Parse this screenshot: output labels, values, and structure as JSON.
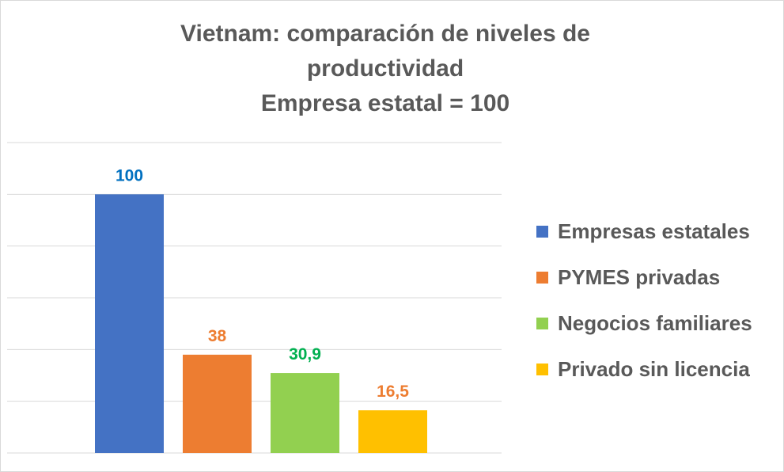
{
  "chart_data": {
    "type": "bar",
    "title": "Vietnam: comparación de niveles de\nproductividad\nEmpresa estatal = 100",
    "categories": [
      "Empresas estatales",
      "PYMES privadas",
      "Negocios familiares",
      "Privado sin licencia"
    ],
    "values": [
      100,
      38,
      30.9,
      16.5
    ],
    "data_labels": [
      "100",
      "38",
      "30,9",
      "16,5"
    ],
    "colors": [
      "#4472c4",
      "#ed7d31",
      "#92d050",
      "#ffc000"
    ],
    "label_colors": [
      "#0070c0",
      "#ed7d31",
      "#00b050",
      "#ed7d31"
    ],
    "ylim": [
      0,
      120
    ],
    "grid": true,
    "y_tick_labels_visible": false,
    "legend_position": "right",
    "xlabel": "",
    "ylabel": ""
  }
}
